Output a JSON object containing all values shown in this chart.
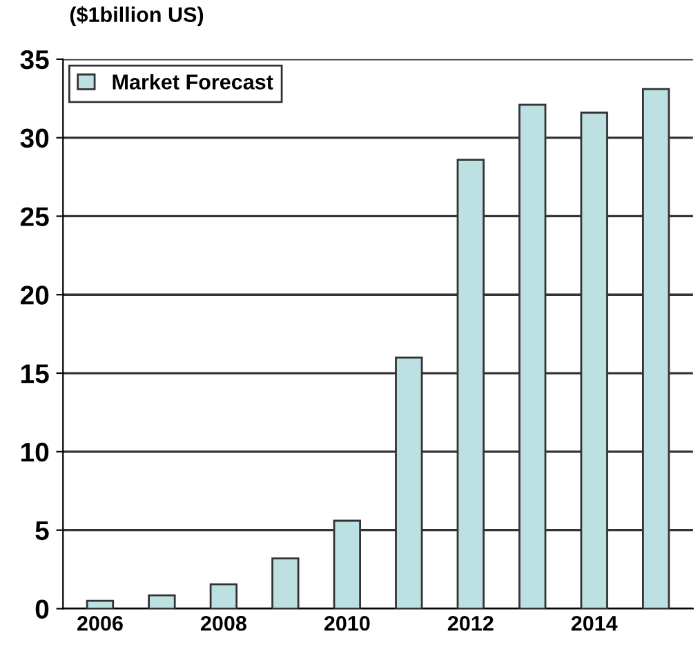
{
  "chart_data": {
    "type": "bar",
    "ylabel": "($1billion US)",
    "categories": [
      "2006",
      null,
      "2008",
      null,
      "2010",
      null,
      "2012",
      null,
      "2014",
      null
    ],
    "series": [
      {
        "name": "Market Forecast",
        "color": "#bde0e2",
        "values": [
          0.5,
          0.85,
          1.55,
          3.2,
          5.6,
          16.0,
          28.6,
          32.1,
          31.6,
          33.1
        ]
      }
    ],
    "ylim": [
      0,
      35
    ],
    "yticks": [
      0,
      5,
      10,
      15,
      20,
      25,
      30,
      35
    ],
    "grid": "y",
    "legend": "top left"
  }
}
